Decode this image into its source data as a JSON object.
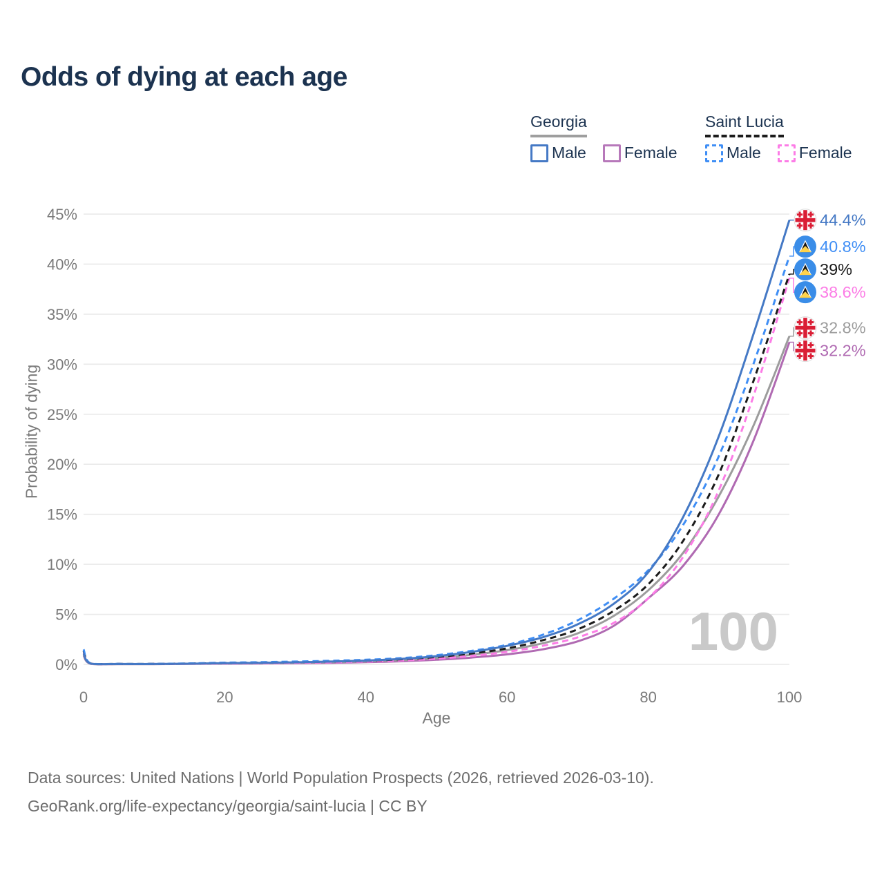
{
  "title": "Odds of dying at each age",
  "watermark": "100",
  "legend": {
    "groups": [
      {
        "name": "Georgia",
        "underline": "solid",
        "underline_color": "#9e9e9e",
        "items": [
          {
            "label": "Male",
            "color": "#4579c5",
            "dash": false
          },
          {
            "label": "Female",
            "color": "#b778ba",
            "dash": false
          }
        ]
      },
      {
        "name": "Saint Lucia",
        "underline": "dashed",
        "underline_color": "#1b1b1b",
        "items": [
          {
            "label": "Male",
            "color": "#3f8ef5",
            "dash": true
          },
          {
            "label": "Female",
            "color": "#fc7ce6",
            "dash": true
          }
        ]
      }
    ]
  },
  "chart_data": {
    "type": "line",
    "title": "Odds of dying at each age",
    "xlabel": "Age",
    "ylabel": "Probability of dying",
    "xlim": [
      0,
      100
    ],
    "ylim": [
      0,
      45
    ],
    "x_ticks": [
      0,
      20,
      40,
      60,
      80,
      100
    ],
    "y_ticks": [
      0,
      5,
      10,
      15,
      20,
      25,
      30,
      35,
      40,
      45
    ],
    "y_tick_suffix": "%",
    "grid": "horizontal",
    "legend_position": "top-right",
    "x": [
      0,
      1,
      5,
      10,
      15,
      20,
      25,
      30,
      35,
      40,
      45,
      50,
      55,
      60,
      65,
      70,
      75,
      80,
      85,
      90,
      95,
      100
    ],
    "series": [
      {
        "name": "Georgia — Male",
        "flag": "georgia",
        "line_style": "solid",
        "color": "#4579c5",
        "end_label": "44.4%",
        "values": [
          1.1,
          0.08,
          0.04,
          0.04,
          0.07,
          0.12,
          0.16,
          0.21,
          0.28,
          0.38,
          0.55,
          0.82,
          1.25,
          1.85,
          2.7,
          4.0,
          6.0,
          9.2,
          14.8,
          22.8,
          33.2,
          44.4
        ]
      },
      {
        "name": "Saint Lucia — Male",
        "flag": "saint-lucia",
        "line_style": "dashed",
        "color": "#3f8ef5",
        "end_label": "40.8%",
        "values": [
          1.5,
          0.1,
          0.05,
          0.05,
          0.1,
          0.17,
          0.22,
          0.28,
          0.36,
          0.46,
          0.63,
          0.92,
          1.35,
          1.95,
          2.95,
          4.4,
          6.5,
          9.4,
          14.0,
          20.8,
          30.2,
          40.8
        ]
      },
      {
        "name": "Saint Lucia — Both sexes",
        "flag": "saint-lucia",
        "line_style": "dashed",
        "color": "#1b1b1b",
        "end_label": "39%",
        "values": [
          1.35,
          0.09,
          0.05,
          0.05,
          0.08,
          0.13,
          0.17,
          0.22,
          0.28,
          0.37,
          0.51,
          0.74,
          1.1,
          1.6,
          2.4,
          3.5,
          5.3,
          8.0,
          12.4,
          19.0,
          28.5,
          39.0
        ]
      },
      {
        "name": "Saint Lucia — Female",
        "flag": "saint-lucia",
        "line_style": "dashed",
        "color": "#fc7ce6",
        "end_label": "38.6%",
        "values": [
          1.2,
          0.08,
          0.04,
          0.04,
          0.06,
          0.09,
          0.12,
          0.16,
          0.21,
          0.28,
          0.39,
          0.57,
          0.85,
          1.25,
          1.85,
          2.7,
          4.1,
          6.6,
          10.8,
          17.4,
          27.0,
          38.6
        ]
      },
      {
        "name": "Georgia — Both sexes",
        "flag": "georgia",
        "line_style": "solid",
        "color": "#9c9c9c",
        "end_label": "32.8%",
        "values": [
          1.0,
          0.07,
          0.03,
          0.03,
          0.06,
          0.1,
          0.13,
          0.17,
          0.22,
          0.3,
          0.43,
          0.64,
          0.96,
          1.42,
          2.1,
          3.1,
          4.8,
          7.4,
          11.2,
          16.8,
          24.0,
          32.8
        ]
      },
      {
        "name": "Georgia — Female",
        "flag": "georgia",
        "line_style": "solid",
        "color": "#b06ab2",
        "end_label": "32.2%",
        "values": [
          0.9,
          0.06,
          0.03,
          0.03,
          0.05,
          0.07,
          0.09,
          0.12,
          0.16,
          0.22,
          0.31,
          0.46,
          0.68,
          1.0,
          1.5,
          2.3,
          3.8,
          6.6,
          9.9,
          15.0,
          22.5,
          32.2
        ]
      }
    ]
  },
  "footer": {
    "line1": "Data sources: United Nations | World Population Prospects (2026, retrieved 2026-03-10).",
    "line2": "GeoRank.org/life-expectancy/georgia/saint-lucia | CC BY"
  }
}
